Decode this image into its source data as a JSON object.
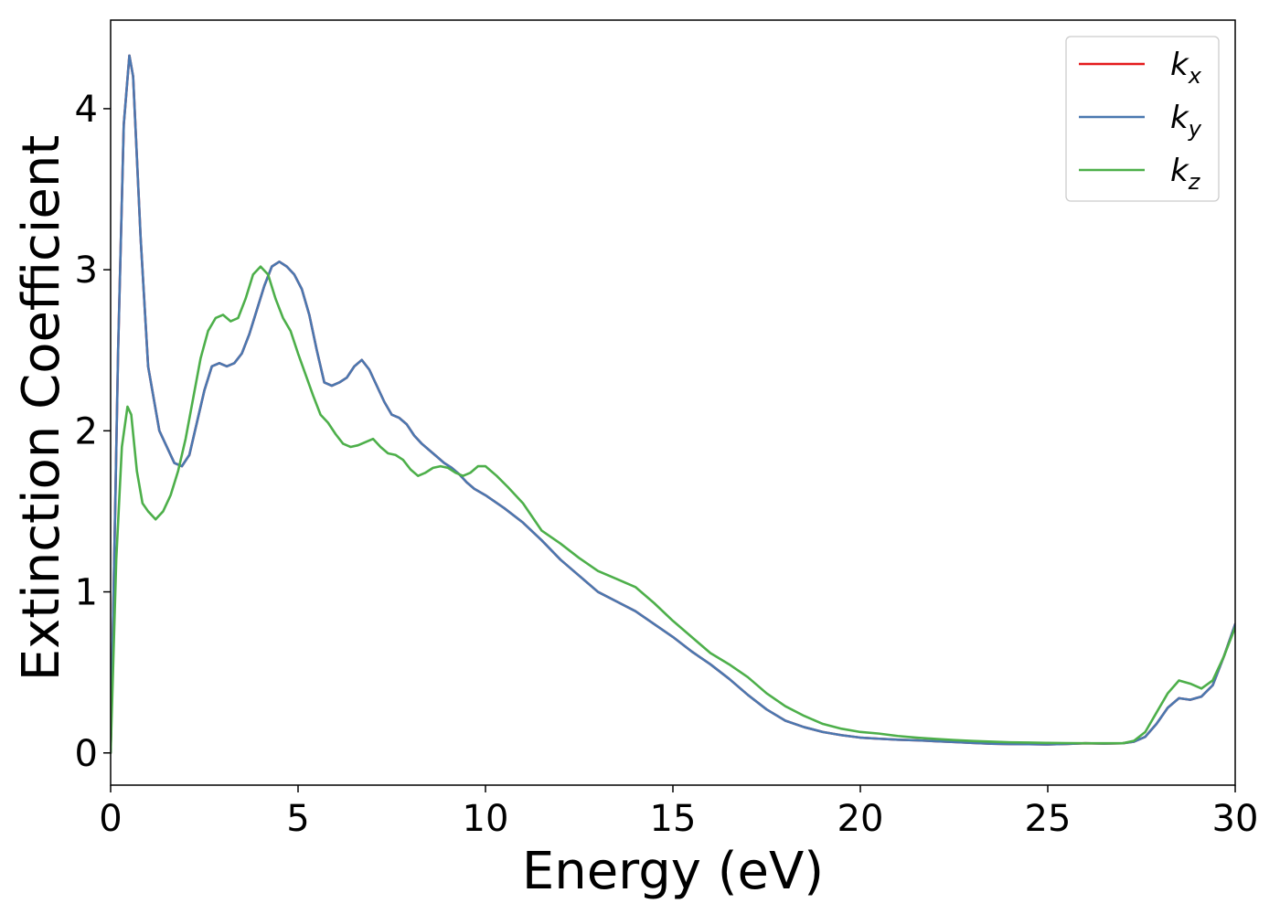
{
  "chart_data": {
    "type": "line",
    "xlabel": "Energy (eV)",
    "ylabel": "Extinction Coefficient",
    "xlim": [
      0,
      30
    ],
    "ylim": [
      -0.2,
      4.55
    ],
    "xticks": [
      0,
      5,
      10,
      15,
      20,
      25,
      30
    ],
    "yticks": [
      0,
      1,
      2,
      3,
      4
    ],
    "xtick_labels": [
      "0",
      "5",
      "10",
      "15",
      "20",
      "25",
      "30"
    ],
    "ytick_labels": [
      "0",
      "1",
      "2",
      "3",
      "4"
    ],
    "grid": false,
    "legend_position": "top-right",
    "series": [
      {
        "name": "k_x",
        "legend_base": "k",
        "legend_sub": "x",
        "color": "#e41a1c",
        "x": [
          0,
          0.2,
          0.35,
          0.5,
          0.6,
          0.8,
          1.0,
          1.3,
          1.5,
          1.7,
          1.9,
          2.1,
          2.3,
          2.5,
          2.7,
          2.9,
          3.1,
          3.3,
          3.5,
          3.7,
          3.9,
          4.1,
          4.3,
          4.5,
          4.7,
          4.9,
          5.1,
          5.3,
          5.5,
          5.7,
          5.9,
          6.1,
          6.3,
          6.5,
          6.7,
          6.9,
          7.1,
          7.3,
          7.5,
          7.7,
          7.9,
          8.1,
          8.3,
          8.5,
          8.7,
          8.9,
          9.1,
          9.3,
          9.5,
          9.7,
          10.0,
          10.5,
          11.0,
          11.5,
          12.0,
          12.5,
          13.0,
          13.5,
          14.0,
          14.5,
          15.0,
          15.5,
          16.0,
          16.5,
          17.0,
          17.5,
          18.0,
          18.5,
          19.0,
          19.5,
          20.0,
          20.5,
          21.0,
          21.5,
          22.0,
          22.5,
          23.0,
          23.5,
          24.0,
          24.5,
          25.0,
          25.5,
          26.0,
          26.5,
          27.0,
          27.3,
          27.6,
          27.9,
          28.2,
          28.5,
          28.8,
          29.1,
          29.4,
          29.7,
          30.0
        ],
        "y": [
          0.0,
          2.5,
          3.9,
          4.33,
          4.2,
          3.2,
          2.4,
          2.0,
          1.9,
          1.8,
          1.78,
          1.85,
          2.05,
          2.25,
          2.4,
          2.42,
          2.4,
          2.42,
          2.48,
          2.6,
          2.75,
          2.9,
          3.02,
          3.05,
          3.02,
          2.97,
          2.88,
          2.72,
          2.5,
          2.3,
          2.28,
          2.3,
          2.33,
          2.4,
          2.44,
          2.38,
          2.28,
          2.18,
          2.1,
          2.08,
          2.04,
          1.97,
          1.92,
          1.88,
          1.84,
          1.8,
          1.77,
          1.73,
          1.68,
          1.64,
          1.6,
          1.52,
          1.43,
          1.32,
          1.2,
          1.1,
          1.0,
          0.94,
          0.88,
          0.8,
          0.72,
          0.63,
          0.55,
          0.46,
          0.36,
          0.27,
          0.2,
          0.16,
          0.13,
          0.11,
          0.095,
          0.088,
          0.082,
          0.078,
          0.073,
          0.068,
          0.062,
          0.057,
          0.055,
          0.054,
          0.053,
          0.056,
          0.06,
          0.058,
          0.06,
          0.07,
          0.1,
          0.18,
          0.28,
          0.34,
          0.33,
          0.35,
          0.42,
          0.6,
          0.8
        ]
      },
      {
        "name": "k_y",
        "legend_base": "k",
        "legend_sub": "y",
        "color": "#4a78b0",
        "x": [
          0,
          0.2,
          0.35,
          0.5,
          0.6,
          0.8,
          1.0,
          1.3,
          1.5,
          1.7,
          1.9,
          2.1,
          2.3,
          2.5,
          2.7,
          2.9,
          3.1,
          3.3,
          3.5,
          3.7,
          3.9,
          4.1,
          4.3,
          4.5,
          4.7,
          4.9,
          5.1,
          5.3,
          5.5,
          5.7,
          5.9,
          6.1,
          6.3,
          6.5,
          6.7,
          6.9,
          7.1,
          7.3,
          7.5,
          7.7,
          7.9,
          8.1,
          8.3,
          8.5,
          8.7,
          8.9,
          9.1,
          9.3,
          9.5,
          9.7,
          10.0,
          10.5,
          11.0,
          11.5,
          12.0,
          12.5,
          13.0,
          13.5,
          14.0,
          14.5,
          15.0,
          15.5,
          16.0,
          16.5,
          17.0,
          17.5,
          18.0,
          18.5,
          19.0,
          19.5,
          20.0,
          20.5,
          21.0,
          21.5,
          22.0,
          22.5,
          23.0,
          23.5,
          24.0,
          24.5,
          25.0,
          25.5,
          26.0,
          26.5,
          27.0,
          27.3,
          27.6,
          27.9,
          28.2,
          28.5,
          28.8,
          29.1,
          29.4,
          29.7,
          30.0
        ],
        "y": [
          0.0,
          2.5,
          3.9,
          4.33,
          4.2,
          3.2,
          2.4,
          2.0,
          1.9,
          1.8,
          1.78,
          1.85,
          2.05,
          2.25,
          2.4,
          2.42,
          2.4,
          2.42,
          2.48,
          2.6,
          2.75,
          2.9,
          3.02,
          3.05,
          3.02,
          2.97,
          2.88,
          2.72,
          2.5,
          2.3,
          2.28,
          2.3,
          2.33,
          2.4,
          2.44,
          2.38,
          2.28,
          2.18,
          2.1,
          2.08,
          2.04,
          1.97,
          1.92,
          1.88,
          1.84,
          1.8,
          1.77,
          1.73,
          1.68,
          1.64,
          1.6,
          1.52,
          1.43,
          1.32,
          1.2,
          1.1,
          1.0,
          0.94,
          0.88,
          0.8,
          0.72,
          0.63,
          0.55,
          0.46,
          0.36,
          0.27,
          0.2,
          0.16,
          0.13,
          0.11,
          0.095,
          0.088,
          0.082,
          0.078,
          0.073,
          0.068,
          0.062,
          0.057,
          0.055,
          0.054,
          0.053,
          0.056,
          0.06,
          0.058,
          0.06,
          0.07,
          0.1,
          0.18,
          0.28,
          0.34,
          0.33,
          0.35,
          0.42,
          0.6,
          0.8
        ]
      },
      {
        "name": "k_z",
        "legend_base": "k",
        "legend_sub": "z",
        "color": "#4daf4a",
        "x": [
          0,
          0.15,
          0.3,
          0.45,
          0.55,
          0.7,
          0.85,
          1.0,
          1.2,
          1.4,
          1.6,
          1.8,
          2.0,
          2.2,
          2.4,
          2.6,
          2.8,
          3.0,
          3.2,
          3.4,
          3.6,
          3.8,
          4.0,
          4.2,
          4.4,
          4.6,
          4.8,
          5.0,
          5.2,
          5.4,
          5.6,
          5.8,
          6.0,
          6.2,
          6.4,
          6.6,
          6.8,
          7.0,
          7.2,
          7.4,
          7.6,
          7.8,
          8.0,
          8.2,
          8.4,
          8.6,
          8.8,
          9.0,
          9.2,
          9.4,
          9.6,
          9.8,
          10.0,
          10.3,
          10.6,
          11.0,
          11.5,
          12.0,
          12.5,
          13.0,
          13.5,
          14.0,
          14.5,
          15.0,
          15.5,
          16.0,
          16.5,
          17.0,
          17.5,
          18.0,
          18.5,
          19.0,
          19.5,
          20.0,
          20.5,
          21.0,
          21.5,
          22.0,
          22.5,
          23.0,
          23.5,
          24.0,
          24.5,
          25.0,
          25.5,
          26.0,
          26.5,
          27.0,
          27.3,
          27.6,
          27.9,
          28.2,
          28.5,
          28.8,
          29.1,
          29.4,
          29.7,
          30.0
        ],
        "y": [
          0.0,
          1.2,
          1.9,
          2.15,
          2.1,
          1.75,
          1.55,
          1.5,
          1.45,
          1.5,
          1.6,
          1.75,
          1.95,
          2.2,
          2.45,
          2.62,
          2.7,
          2.72,
          2.68,
          2.7,
          2.82,
          2.97,
          3.02,
          2.97,
          2.82,
          2.7,
          2.62,
          2.48,
          2.35,
          2.22,
          2.1,
          2.05,
          1.98,
          1.92,
          1.9,
          1.91,
          1.93,
          1.95,
          1.9,
          1.86,
          1.85,
          1.82,
          1.76,
          1.72,
          1.74,
          1.77,
          1.78,
          1.77,
          1.74,
          1.72,
          1.74,
          1.78,
          1.78,
          1.72,
          1.65,
          1.55,
          1.38,
          1.3,
          1.21,
          1.13,
          1.08,
          1.03,
          0.93,
          0.82,
          0.72,
          0.62,
          0.55,
          0.47,
          0.37,
          0.29,
          0.23,
          0.18,
          0.15,
          0.13,
          0.12,
          0.105,
          0.095,
          0.087,
          0.08,
          0.074,
          0.07,
          0.066,
          0.064,
          0.062,
          0.061,
          0.06,
          0.06,
          0.06,
          0.075,
          0.13,
          0.25,
          0.37,
          0.45,
          0.43,
          0.4,
          0.45,
          0.6,
          0.78
        ]
      }
    ]
  }
}
